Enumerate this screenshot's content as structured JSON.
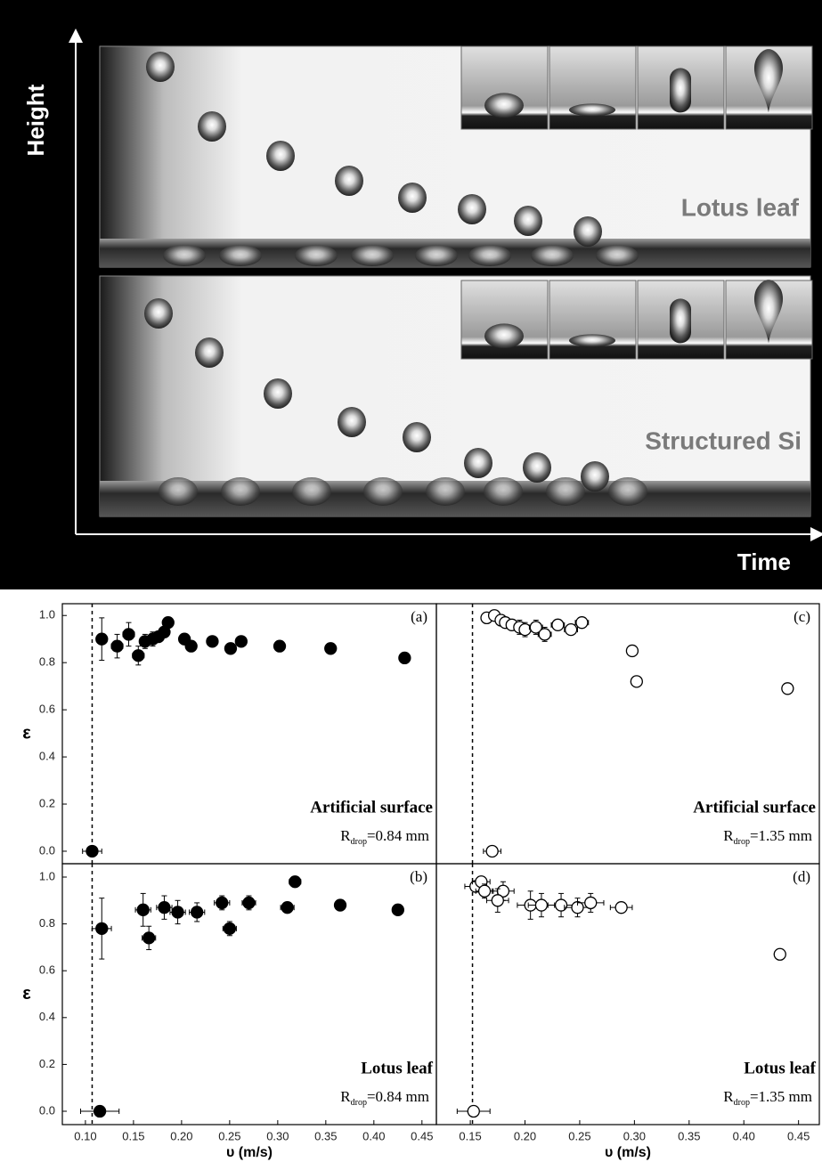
{
  "photo": {
    "y_axis_label": "Height",
    "x_axis_label": "Time",
    "panels": [
      "Lotus leaf",
      "Structured Si"
    ]
  },
  "chart_data": [
    {
      "type": "scatter",
      "panel_label": "(a)",
      "surface": "Artificial surface",
      "radius": {
        "symbol": "R",
        "subscript": "drop",
        "text": "=0.84 mm"
      },
      "color": "#000000",
      "marker_fill": "#000000",
      "x": [
        0.107,
        0.117,
        0.133,
        0.145,
        0.155,
        0.162,
        0.17,
        0.176,
        0.182,
        0.186,
        0.203,
        0.21,
        0.232,
        0.251,
        0.262,
        0.302,
        0.355,
        0.432
      ],
      "values": [
        0.0,
        0.9,
        0.87,
        0.92,
        0.83,
        0.89,
        0.9,
        0.91,
        0.93,
        0.97,
        0.9,
        0.87,
        0.89,
        0.86,
        0.89,
        0.87,
        0.86,
        0.82
      ],
      "xerr": [
        0.01,
        0.005,
        0.006,
        0.006,
        0.006,
        0.005,
        0.005,
        0.005,
        0.005,
        0.004,
        0.005,
        0.004,
        0.004,
        0.004,
        0.004,
        0.004,
        0.004,
        0.004
      ],
      "yerr": [
        0.0,
        0.09,
        0.05,
        0.05,
        0.04,
        0.03,
        0.03,
        0.02,
        0.02,
        0.02,
        0.02,
        0.02,
        0.0,
        0.0,
        0.0,
        0.0,
        0.0,
        0.0
      ],
      "threshold": 0.107,
      "xlim": [
        0.076,
        0.465
      ],
      "ylim": [
        -0.053,
        1.05
      ],
      "ylabel": "ε",
      "yticks": [
        {
          "value": 0,
          "label": "0.0"
        },
        {
          "value": 0.2,
          "label": "0.2"
        },
        {
          "value": 0.4,
          "label": "0.4"
        },
        {
          "value": 0.6,
          "label": "0.6"
        },
        {
          "value": 0.8,
          "label": "0.8"
        },
        {
          "value": 1,
          "label": "1.0"
        }
      ]
    },
    {
      "type": "scatter",
      "panel_label": "(c)",
      "surface": "Artificial surface",
      "radius": {
        "symbol": "R",
        "subscript": "drop",
        "text": "=1.35 mm"
      },
      "color": "#000000",
      "marker_fill": "#ffffff",
      "x": [
        0.17,
        0.165,
        0.172,
        0.178,
        0.182,
        0.188,
        0.195,
        0.2,
        0.21,
        0.218,
        0.23,
        0.242,
        0.252,
        0.298,
        0.302,
        0.44
      ],
      "values": [
        0.0,
        0.99,
        1.0,
        0.98,
        0.97,
        0.96,
        0.95,
        0.94,
        0.95,
        0.92,
        0.96,
        0.94,
        0.97,
        0.85,
        0.72,
        0.69
      ],
      "xerr": [
        0.008,
        0.004,
        0.004,
        0.004,
        0.004,
        0.005,
        0.005,
        0.005,
        0.006,
        0.006,
        0.006,
        0.006,
        0.006,
        0.0,
        0.0,
        0.0
      ],
      "yerr": [
        0.0,
        0.01,
        0.01,
        0.02,
        0.02,
        0.02,
        0.03,
        0.03,
        0.03,
        0.03,
        0.02,
        0.02,
        0.02,
        0.0,
        0.0,
        0.0
      ],
      "threshold": 0.152,
      "xlim": [
        0.119,
        0.469
      ],
      "ylim": [
        -0.053,
        1.05
      ]
    },
    {
      "type": "scatter",
      "panel_label": "(b)",
      "surface": "Lotus leaf",
      "radius": {
        "symbol": "R",
        "subscript": "drop",
        "text": "=0.84 mm"
      },
      "color": "#000000",
      "marker_fill": "#000000",
      "x": [
        0.115,
        0.117,
        0.16,
        0.166,
        0.182,
        0.196,
        0.216,
        0.242,
        0.25,
        0.27,
        0.31,
        0.318,
        0.365,
        0.425
      ],
      "values": [
        0.0,
        0.78,
        0.86,
        0.74,
        0.87,
        0.85,
        0.85,
        0.89,
        0.78,
        0.89,
        0.87,
        0.98,
        0.88,
        0.86
      ],
      "xerr": [
        0.02,
        0.01,
        0.008,
        0.007,
        0.008,
        0.008,
        0.008,
        0.008,
        0.007,
        0.007,
        0.007,
        0.006,
        0.0,
        0.0
      ],
      "yerr": [
        0.0,
        0.13,
        0.07,
        0.05,
        0.05,
        0.05,
        0.04,
        0.03,
        0.03,
        0.03,
        0.0,
        0.0,
        0.0,
        0.0
      ],
      "threshold": 0.107,
      "xlim": [
        0.076,
        0.465
      ],
      "ylim": [
        -0.057,
        1.057
      ],
      "ylabel": "ε",
      "xlabel": "υ (m/s)",
      "yticks": [
        {
          "value": 0,
          "label": "0.0"
        },
        {
          "value": 0.2,
          "label": "0.2"
        },
        {
          "value": 0.4,
          "label": "0.4"
        },
        {
          "value": 0.6,
          "label": "0.6"
        },
        {
          "value": 0.8,
          "label": "0.8"
        },
        {
          "value": 1,
          "label": "1.0"
        }
      ],
      "xticks": [
        {
          "value": 0.1,
          "label": "0.10"
        },
        0.15,
        {
          "value": 0.2,
          "label": "0.20"
        },
        0.25,
        {
          "value": 0.3,
          "label": "0.30"
        },
        0.35,
        {
          "value": 0.4,
          "label": "0.40"
        },
        0.45
      ]
    },
    {
      "type": "scatter",
      "panel_label": "(d)",
      "surface": "Lotus leaf",
      "radius": {
        "symbol": "R",
        "subscript": "drop",
        "text": "=1.35 mm"
      },
      "color": "#000000",
      "marker_fill": "#ffffff",
      "x": [
        0.153,
        0.155,
        0.16,
        0.163,
        0.18,
        0.175,
        0.205,
        0.215,
        0.233,
        0.248,
        0.26,
        0.288,
        0.433
      ],
      "values": [
        0.0,
        0.96,
        0.98,
        0.94,
        0.94,
        0.9,
        0.88,
        0.88,
        0.88,
        0.87,
        0.89,
        0.87,
        0.67
      ],
      "xerr": [
        0.015,
        0.01,
        0.008,
        0.008,
        0.01,
        0.01,
        0.012,
        0.012,
        0.012,
        0.012,
        0.012,
        0.01,
        0.0
      ],
      "yerr": [
        0.0,
        0.02,
        0.02,
        0.03,
        0.04,
        0.05,
        0.06,
        0.05,
        0.05,
        0.04,
        0.04,
        0.01,
        0.0
      ],
      "threshold": 0.152,
      "xlim": [
        0.119,
        0.469
      ],
      "ylim": [
        -0.057,
        1.057
      ],
      "xlabel": "υ (m/s)",
      "xticks": [
        0.15,
        {
          "value": 0.2,
          "label": "0.20"
        },
        0.25,
        {
          "value": 0.3,
          "label": "0.30"
        },
        0.35,
        {
          "value": 0.4,
          "label": "0.40"
        },
        0.45
      ]
    }
  ]
}
